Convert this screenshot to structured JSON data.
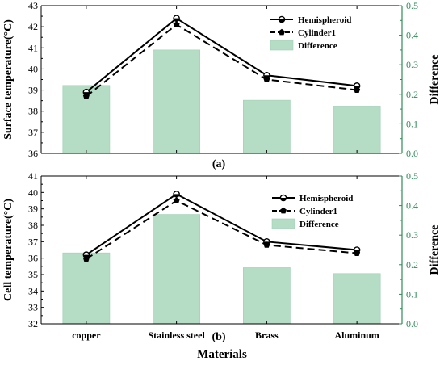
{
  "chart_data": [
    {
      "type": "bar",
      "panel_label": "(a)",
      "categories": [
        "copper",
        "Stainless steel",
        "Brass",
        "Aluminum"
      ],
      "xlabel": "",
      "ylabel": "Surface temperature(°C)",
      "y2label": "Difference",
      "ylim": [
        36,
        43
      ],
      "y2lim": [
        0,
        0.5
      ],
      "yticks": [
        "36",
        "37",
        "38",
        "39",
        "40",
        "41",
        "42",
        "43"
      ],
      "y2ticks": [
        "0.0",
        "0.1",
        "0.2",
        "0.3",
        "0.4",
        "0.5"
      ],
      "series": [
        {
          "name": "Hemispheroid",
          "kind": "line-solid",
          "marker": "circle",
          "values": [
            38.9,
            42.4,
            39.7,
            39.2
          ]
        },
        {
          "name": "Cylinder1",
          "kind": "line-dashed",
          "marker": "pentagon",
          "values": [
            38.7,
            42.1,
            39.5,
            39.0
          ]
        },
        {
          "name": "Difference",
          "kind": "bar",
          "axis": "right",
          "values": [
            0.23,
            0.35,
            0.18,
            0.16
          ]
        }
      ],
      "legend": "top-right",
      "colors": {
        "bar": "#b5dcc5",
        "bar_edge": "#9fcfb4",
        "line": "#000000",
        "right_axis": "#2e8b57"
      }
    },
    {
      "type": "bar",
      "panel_label": "(b)",
      "categories": [
        "copper",
        "Stainless steel",
        "Brass",
        "Aluminum"
      ],
      "xlabel": "Materials",
      "ylabel": "Cell temperature(°C)",
      "y2label": "Difference",
      "ylim": [
        32,
        41
      ],
      "y2lim": [
        0,
        0.5
      ],
      "yticks": [
        "32",
        "33",
        "34",
        "35",
        "36",
        "37",
        "38",
        "39",
        "40",
        "41"
      ],
      "y2ticks": [
        "0.0",
        "0.1",
        "0.2",
        "0.3",
        "0.4",
        "0.5"
      ],
      "series": [
        {
          "name": "Hemispheroid",
          "kind": "line-solid",
          "marker": "circle",
          "values": [
            36.2,
            39.9,
            37.0,
            36.5
          ]
        },
        {
          "name": "Cylinder1",
          "kind": "line-dashed",
          "marker": "pentagon",
          "values": [
            35.95,
            39.5,
            36.8,
            36.3
          ]
        },
        {
          "name": "Difference",
          "kind": "bar",
          "axis": "right",
          "values": [
            0.24,
            0.37,
            0.19,
            0.17
          ]
        }
      ],
      "legend": "top-right",
      "colors": {
        "bar": "#b5dcc5",
        "bar_edge": "#9fcfb4",
        "line": "#000000",
        "right_axis": "#2e8b57"
      }
    }
  ]
}
